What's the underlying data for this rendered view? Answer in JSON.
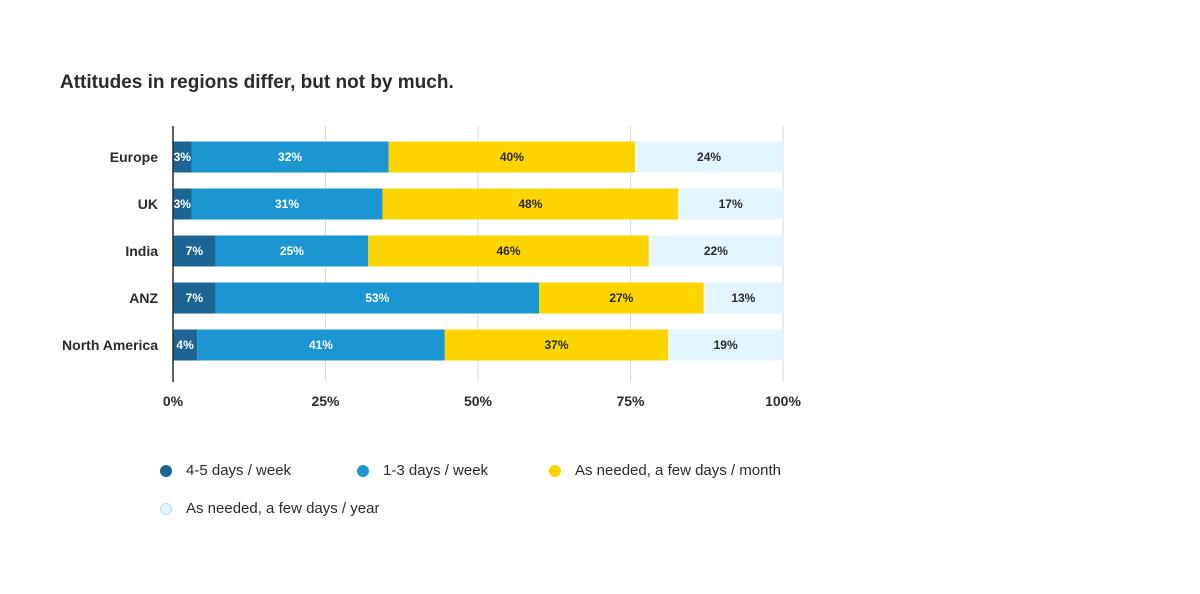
{
  "chart_data": {
    "type": "bar",
    "orientation": "horizontal",
    "stacked": true,
    "title": "Attitudes in regions differ, but not by much.",
    "categories": [
      "Europe",
      "UK",
      "India",
      "ANZ",
      "North America"
    ],
    "series": [
      {
        "name": "4-5 days / week",
        "values": [
          3,
          3,
          7,
          7,
          4
        ],
        "color": "#1b6494",
        "label_color": "#ffffff"
      },
      {
        "name": "1-3 days / week",
        "values": [
          32,
          31,
          25,
          53,
          41
        ],
        "color": "#1b96d3",
        "label_color": "#ffffff"
      },
      {
        "name": "As needed, a few days / month",
        "values": [
          40,
          48,
          46,
          27,
          37
        ],
        "color": "#fcd400",
        "label_color": "#2b2b2b"
      },
      {
        "name": "As needed, a few days / year",
        "values": [
          24,
          17,
          22,
          13,
          19
        ],
        "color": "#e3f6fd",
        "label_color": "#2b2b2b"
      }
    ],
    "xlim": [
      0,
      100
    ],
    "xticks": [
      "0%",
      "25%",
      "50%",
      "75%",
      "100%"
    ],
    "grid": true,
    "legend_position": "bottom"
  }
}
